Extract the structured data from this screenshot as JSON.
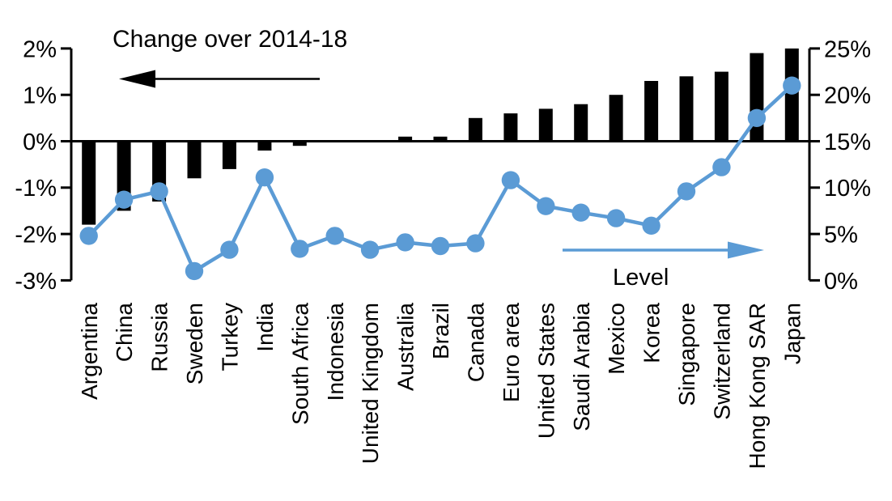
{
  "chart_data": {
    "type": "combo_bar_line",
    "categories": [
      "Argentina",
      "China",
      "Russia",
      "Sweden",
      "Turkey",
      "India",
      "South Africa",
      "Indonesia",
      "United Kingdom",
      "Australia",
      "Brazil",
      "Canada",
      "Euro area",
      "United States",
      "Saudi Arabia",
      "Mexico",
      "Korea",
      "Singapore",
      "Switzerland",
      "Hong Kong SAR",
      "Japan"
    ],
    "series": [
      {
        "name": "Change over 2014-18",
        "type": "bar",
        "axis": "left",
        "color": "#000000",
        "values": [
          -1.8,
          -1.5,
          -1.3,
          -0.8,
          -0.6,
          -0.2,
          -0.1,
          0,
          0,
          0.1,
          0.1,
          0.5,
          0.6,
          0.7,
          0.8,
          1.0,
          1.3,
          1.4,
          1.5,
          1.9,
          2.0
        ]
      },
      {
        "name": "Level",
        "type": "line",
        "axis": "right",
        "color": "#5B9BD5",
        "values": [
          4.8,
          8.7,
          9.6,
          1.0,
          3.3,
          11.1,
          3.4,
          4.8,
          3.3,
          4.1,
          3.7,
          4.0,
          10.8,
          8.0,
          7.3,
          6.7,
          5.9,
          9.6,
          12.2,
          17.5,
          21.0
        ]
      }
    ],
    "left_axis": {
      "ticks": [
        "2%",
        "1%",
        "0%",
        "-1%",
        "-2%",
        "-3%"
      ],
      "tick_values": [
        2,
        1,
        0,
        -1,
        -2,
        -3
      ],
      "min": -3,
      "max": 2
    },
    "right_axis": {
      "ticks": [
        "25%",
        "20%",
        "15%",
        "10%",
        "5%",
        "0%"
      ],
      "tick_values": [
        25,
        20,
        15,
        10,
        5,
        0
      ],
      "min": 0,
      "max": 25
    },
    "annotations": {
      "bar_series_label": "Change over 2014-18",
      "bar_arrow_direction": "left",
      "line_series_label": "Level",
      "line_arrow_direction": "right"
    },
    "grid": false,
    "background": "#ffffff",
    "legend_position": "in-plot-annotations"
  }
}
